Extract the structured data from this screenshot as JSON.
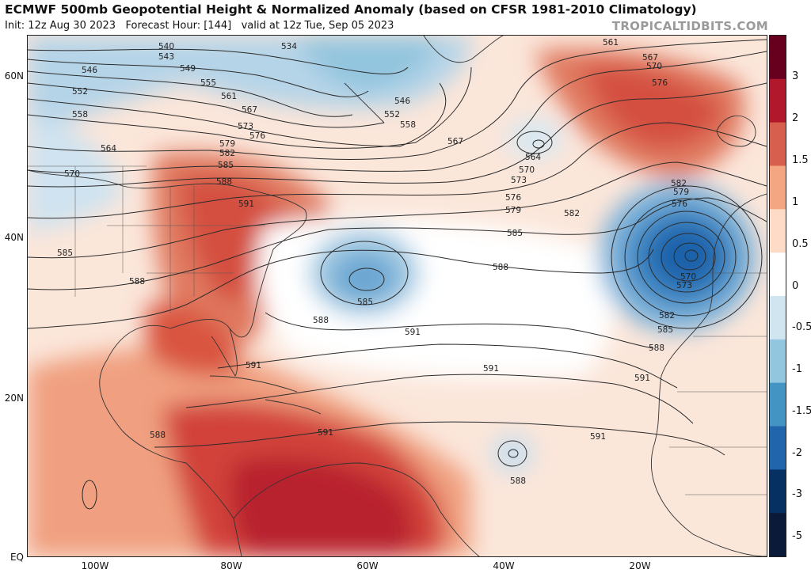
{
  "header": {
    "title": "ECMWF 500mb Geopotential Height & Normalized Anomaly (based on CFSR 1981-2010 Climatology)",
    "init": "Init: 12z Aug 30 2023",
    "forecast_hour": "Forecast Hour: [144]",
    "valid": "valid at 12z Tue, Sep 05 2023",
    "site": "TROPICALTIDBITS.COM"
  },
  "axes": {
    "lat_labels": [
      "60N",
      "40N",
      "20N",
      "EQ"
    ],
    "lon_labels": [
      "100W",
      "80W",
      "60W",
      "40W",
      "20W"
    ]
  },
  "colorbar": {
    "tick_labels": [
      "3",
      "2",
      "1.5",
      "1",
      "0.5",
      "0",
      "-0.5",
      "-1",
      "-1.5",
      "-2",
      "-3",
      "-5"
    ],
    "colors": [
      "#67001f",
      "#b2182b",
      "#d6604d",
      "#f4a582",
      "#fddbc7",
      "#ffffff",
      "#d1e5f0",
      "#92c5de",
      "#4393c3",
      "#2166ac",
      "#053061",
      "#0b1a38"
    ]
  },
  "contour_labels": [
    "534",
    "540",
    "543",
    "546",
    "549",
    "552",
    "555",
    "558",
    "561",
    "564",
    "567",
    "570",
    "573",
    "576",
    "579",
    "582",
    "585",
    "588",
    "591"
  ],
  "map_labels": {
    "l534": "534",
    "l540": "540",
    "l543": "543",
    "l546": "546",
    "l549": "549",
    "l552": "552",
    "l555": "555",
    "l558": "558",
    "l561": "561",
    "l564": "564",
    "l567": "567",
    "l570": "570",
    "l573": "573",
    "l576": "576",
    "l579": "579",
    "l582": "582",
    "l585": "585",
    "l588": "588",
    "l591": "591"
  }
}
